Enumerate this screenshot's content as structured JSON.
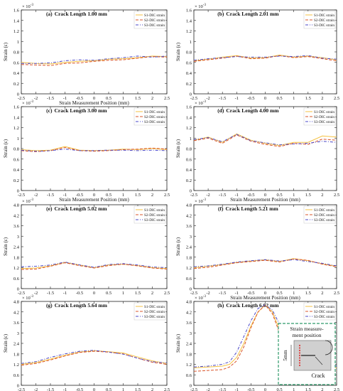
{
  "figure": {
    "exp_label": "× 10",
    "exp_power": "-3",
    "ylabel": "Strain (ε)",
    "xlabel": "Strain Measurement Position (mm)",
    "series_colors": [
      "#f5c242",
      "#d9542a",
      "#4a47c8"
    ],
    "series_styles": [
      "solid",
      "dash",
      "dashdot"
    ]
  },
  "inset": {
    "title_line1": "Strain measure-",
    "title_line2": "ment position",
    "dim_label": "5mm",
    "crack_label": "Crack",
    "border_color": "#2f9a6a"
  },
  "chart_data": [
    {
      "type": "line",
      "panel": "(a)",
      "title": "Crack Length 1.00 mm",
      "ylim": [
        0,
        1.6
      ],
      "yticks": [
        0,
        0.2,
        0.4,
        0.6,
        0.8,
        1.0,
        1.2,
        1.4,
        1.6
      ],
      "xlim": [
        -2.5,
        2.5
      ],
      "xticks": [
        -2.5,
        -2,
        -1.5,
        -1,
        -0.5,
        0,
        0.5,
        1,
        1.5,
        2,
        2.5
      ],
      "show_xlabel": true,
      "legend": "top-right",
      "x": [
        -2.5,
        -2,
        -1.5,
        -1,
        -0.5,
        0,
        0.5,
        1,
        1.5,
        2,
        2.5
      ],
      "series": [
        {
          "name": "S1-DIC strain",
          "values": [
            0.6,
            0.58,
            0.57,
            0.6,
            0.62,
            0.63,
            0.66,
            0.67,
            0.69,
            0.72,
            0.71
          ]
        },
        {
          "name": "S2-DIC strain",
          "values": [
            0.56,
            0.55,
            0.54,
            0.58,
            0.59,
            0.62,
            0.64,
            0.65,
            0.68,
            0.71,
            0.7
          ]
        },
        {
          "name": "S3-DIC strain",
          "values": [
            0.58,
            0.58,
            0.59,
            0.63,
            0.65,
            0.64,
            0.67,
            0.69,
            0.72,
            0.7,
            0.72
          ]
        }
      ]
    },
    {
      "type": "line",
      "panel": "(b)",
      "title": "Crack Length 2.01 mm",
      "ylim": [
        0,
        1.6
      ],
      "yticks": [
        0,
        0.2,
        0.4,
        0.6,
        0.8,
        1.0,
        1.2,
        1.4,
        1.6
      ],
      "xlim": [
        -2.5,
        2.5
      ],
      "xticks": [
        -2.5,
        -2,
        -1.5,
        -1,
        -0.5,
        0,
        0.5,
        1,
        1.5,
        2,
        2.5
      ],
      "show_xlabel": false,
      "legend": "top-right",
      "x": [
        -2.5,
        -2,
        -1.5,
        -1,
        -0.5,
        0,
        0.5,
        1,
        1.5,
        2,
        2.5
      ],
      "series": [
        {
          "name": "S1-DIC strain",
          "values": [
            0.63,
            0.66,
            0.7,
            0.73,
            0.68,
            0.69,
            0.74,
            0.7,
            0.72,
            0.69,
            0.65
          ]
        },
        {
          "name": "S2-DIC strain",
          "values": [
            0.62,
            0.65,
            0.68,
            0.72,
            0.67,
            0.68,
            0.73,
            0.69,
            0.71,
            0.67,
            0.63
          ]
        },
        {
          "name": "S3-DIC strain",
          "values": [
            0.64,
            0.67,
            0.69,
            0.71,
            0.7,
            0.7,
            0.72,
            0.71,
            0.73,
            0.68,
            0.66
          ]
        }
      ]
    },
    {
      "type": "line",
      "panel": "(c)",
      "title": "Crack Length 3.00 mm",
      "ylim": [
        0,
        1.6
      ],
      "yticks": [
        0,
        0.2,
        0.4,
        0.6,
        0.8,
        1.0,
        1.2,
        1.4,
        1.6
      ],
      "xlim": [
        -2.5,
        2.5
      ],
      "xticks": [
        -2.5,
        -2,
        -1.5,
        -1,
        -0.5,
        0,
        0.5,
        1,
        1.5,
        2,
        2.5
      ],
      "show_xlabel": true,
      "legend": "top-right",
      "x": [
        -2.5,
        -2,
        -1.5,
        -1,
        -0.5,
        0,
        0.5,
        1,
        1.5,
        2,
        2.5
      ],
      "series": [
        {
          "name": "S1-DIC strain",
          "values": [
            0.78,
            0.76,
            0.77,
            0.84,
            0.77,
            0.76,
            0.77,
            0.79,
            0.78,
            0.8,
            0.78
          ]
        },
        {
          "name": "S2-DIC strain",
          "values": [
            0.76,
            0.74,
            0.76,
            0.82,
            0.76,
            0.75,
            0.76,
            0.78,
            0.79,
            0.81,
            0.79
          ]
        },
        {
          "name": "S3-DIC strain",
          "values": [
            0.77,
            0.75,
            0.76,
            0.79,
            0.76,
            0.76,
            0.77,
            0.77,
            0.76,
            0.77,
            0.76
          ]
        }
      ]
    },
    {
      "type": "line",
      "panel": "(d)",
      "title": "Crack Length 4.00 mm",
      "ylim": [
        0,
        1.6
      ],
      "yticks": [
        0,
        0.2,
        0.4,
        0.6,
        0.8,
        1.0,
        1.2,
        1.4,
        1.6
      ],
      "xlim": [
        -2.5,
        2.5
      ],
      "xticks": [
        -2.5,
        -2,
        -1.5,
        -1,
        -0.5,
        0,
        0.5,
        1,
        1.5,
        2,
        2.5
      ],
      "show_xlabel": true,
      "legend": "top-right",
      "x": [
        -2.5,
        -2,
        -1.5,
        -1,
        -0.5,
        0,
        0.5,
        1,
        1.5,
        2,
        2.5
      ],
      "series": [
        {
          "name": "S1-DIC strain",
          "values": [
            0.96,
            1.02,
            0.92,
            1.08,
            0.96,
            0.9,
            0.86,
            0.92,
            0.92,
            1.04,
            1.02
          ]
        },
        {
          "name": "S2-DIC strain",
          "values": [
            0.95,
            1.0,
            0.9,
            1.06,
            0.94,
            0.88,
            0.84,
            0.9,
            0.88,
            0.98,
            0.96
          ]
        },
        {
          "name": "S3-DIC strain",
          "values": [
            0.97,
            1.01,
            0.93,
            1.07,
            0.95,
            0.91,
            0.87,
            0.89,
            0.9,
            0.94,
            0.92
          ]
        }
      ]
    },
    {
      "type": "line",
      "panel": "(e)",
      "title": "Crack Length 5.02 mm",
      "ylim": [
        0,
        4.8
      ],
      "yticks": [
        0,
        0.6,
        1.2,
        1.8,
        2.4,
        3.0,
        3.6,
        4.2,
        4.8
      ],
      "xlim": [
        -2.5,
        2.5
      ],
      "xticks": [
        -2.5,
        -2,
        -1.5,
        -1,
        -0.5,
        0,
        0.5,
        1,
        1.5,
        2,
        2.5
      ],
      "show_xlabel": false,
      "legend": "top-right",
      "x": [
        -2.5,
        -2,
        -1.5,
        -1,
        -0.5,
        0,
        0.5,
        1,
        1.5,
        2,
        2.5
      ],
      "series": [
        {
          "name": "S1-DIC strain",
          "values": [
            1.15,
            1.18,
            1.3,
            1.5,
            1.35,
            1.2,
            1.35,
            1.4,
            1.32,
            1.2,
            1.15
          ]
        },
        {
          "name": "S2-DIC strain",
          "values": [
            1.1,
            1.12,
            1.28,
            1.48,
            1.32,
            1.18,
            1.32,
            1.4,
            1.3,
            1.18,
            1.12
          ]
        },
        {
          "name": "S3-DIC strain",
          "values": [
            1.25,
            1.28,
            1.35,
            1.52,
            1.36,
            1.22,
            1.38,
            1.43,
            1.35,
            1.24,
            1.2
          ]
        }
      ]
    },
    {
      "type": "line",
      "panel": "(f)",
      "title": "Crack Length 5.21 mm",
      "ylim": [
        0,
        4.8
      ],
      "yticks": [
        0,
        0.6,
        1.2,
        1.8,
        2.4,
        3.0,
        3.6,
        4.2,
        4.8
      ],
      "xlim": [
        -2.5,
        2.5
      ],
      "xticks": [
        -2.5,
        -2,
        -1.5,
        -1,
        -0.5,
        0,
        0.5,
        1,
        1.5,
        2,
        2.5
      ],
      "show_xlabel": true,
      "legend": "top-right",
      "x": [
        -2.5,
        -2,
        -1.5,
        -1,
        -0.5,
        0,
        0.5,
        1,
        1.5,
        2,
        2.5
      ],
      "series": [
        {
          "name": "S1-DIC strain",
          "values": [
            1.2,
            1.28,
            1.38,
            1.5,
            1.58,
            1.65,
            1.55,
            1.72,
            1.6,
            1.42,
            1.28
          ]
        },
        {
          "name": "S2-DIC strain",
          "values": [
            1.15,
            1.22,
            1.35,
            1.48,
            1.55,
            1.62,
            1.52,
            1.7,
            1.62,
            1.4,
            1.25
          ]
        },
        {
          "name": "S3-DIC strain",
          "values": [
            1.25,
            1.3,
            1.4,
            1.52,
            1.6,
            1.66,
            1.58,
            1.66,
            1.55,
            1.45,
            1.3
          ]
        }
      ]
    },
    {
      "type": "line",
      "panel": "(g)",
      "title": "Crack Length 5.64 mm",
      "ylim": [
        0,
        4.8
      ],
      "yticks": [
        0,
        0.6,
        1.2,
        1.8,
        2.4,
        3.0,
        3.6,
        4.2,
        4.8
      ],
      "xlim": [
        -2.5,
        2.5
      ],
      "xticks": [
        -2.5,
        -2,
        -1.5,
        -1,
        -0.5,
        0,
        0.5,
        1,
        1.5,
        2,
        2.5
      ],
      "show_xlabel": true,
      "legend": "top-right",
      "x": [
        -2.5,
        -2,
        -1.5,
        -1,
        -0.5,
        0,
        0.5,
        1,
        1.5,
        2,
        2.5
      ],
      "series": [
        {
          "name": "S1-DIC strain",
          "values": [
            1.2,
            1.3,
            1.5,
            1.72,
            1.9,
            1.98,
            1.92,
            1.85,
            1.62,
            1.4,
            1.25
          ]
        },
        {
          "name": "S2-DIC strain",
          "values": [
            1.15,
            1.25,
            1.45,
            1.68,
            1.88,
            1.95,
            1.9,
            1.8,
            1.55,
            1.32,
            1.2
          ]
        },
        {
          "name": "S3-DIC strain",
          "values": [
            1.25,
            1.35,
            1.6,
            1.8,
            1.95,
            2.0,
            1.9,
            1.78,
            1.55,
            1.35,
            1.28
          ]
        }
      ]
    },
    {
      "type": "line",
      "panel": "(h)",
      "title": "Crack Length 6.02 mm",
      "ylim": [
        0,
        4.8
      ],
      "yticks": [
        0,
        0.6,
        1.2,
        1.8,
        2.4,
        3.0,
        3.6,
        4.2,
        4.8
      ],
      "xlim": [
        -2.5,
        2.5
      ],
      "xticks": [
        -2.5,
        -2,
        -1.5,
        -1,
        -0.5,
        0,
        0.5,
        1,
        1.5,
        2,
        2.5
      ],
      "show_xlabel": true,
      "legend": "top-right",
      "x": [
        -2.5,
        -2,
        -1.5,
        -1.25,
        -1,
        -0.75,
        -0.5,
        -0.25,
        0,
        0.25,
        0.5,
        0.75,
        1,
        1.25,
        1.5,
        2,
        2.5
      ],
      "series": [
        {
          "name": "S1-DIC strain",
          "values": [
            1.0,
            1.05,
            1.1,
            1.2,
            1.6,
            2.4,
            3.4,
            4.2,
            4.6,
            4.2,
            3.2,
            2.2,
            1.6,
            1.3,
            1.2,
            1.1,
            1.0
          ]
        },
        {
          "name": "S2-DIC strain",
          "values": [
            0.8,
            0.85,
            0.9,
            1.05,
            1.4,
            2.2,
            3.3,
            4.2,
            4.6,
            4.1,
            3.0,
            2.0,
            1.4,
            1.05,
            0.95,
            0.9,
            0.85
          ]
        },
        {
          "name": "S3-DIC strain",
          "values": [
            1.05,
            1.1,
            1.2,
            1.35,
            1.9,
            2.8,
            3.7,
            4.4,
            4.6,
            4.3,
            3.5,
            2.6,
            1.9,
            1.5,
            1.35,
            1.2,
            1.1
          ]
        }
      ]
    }
  ]
}
